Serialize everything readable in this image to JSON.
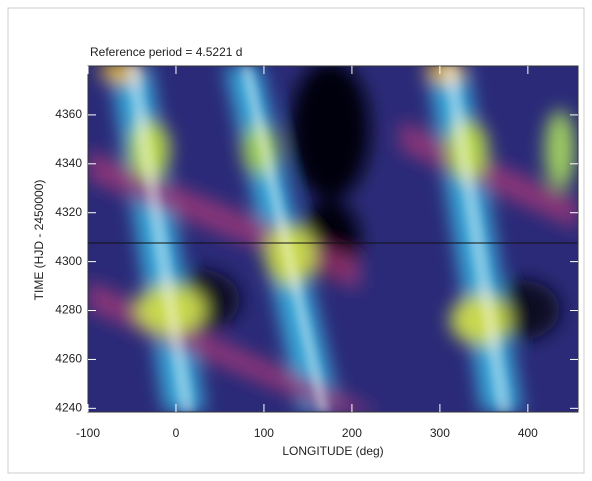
{
  "chart_data": {
    "type": "heatmap",
    "title": "Reference period = 4.5221 d",
    "xlabel": "LONGITUDE (deg)",
    "ylabel": "TIME (HJD - 2450000)",
    "xlim": [
      -100,
      457
    ],
    "xticks": [
      -100,
      0,
      100,
      200,
      300,
      400
    ],
    "ylim": [
      4238.5,
      4380
    ],
    "yticks": [
      4240,
      4260,
      4280,
      4300,
      4320,
      4340,
      4360
    ]
  }
}
